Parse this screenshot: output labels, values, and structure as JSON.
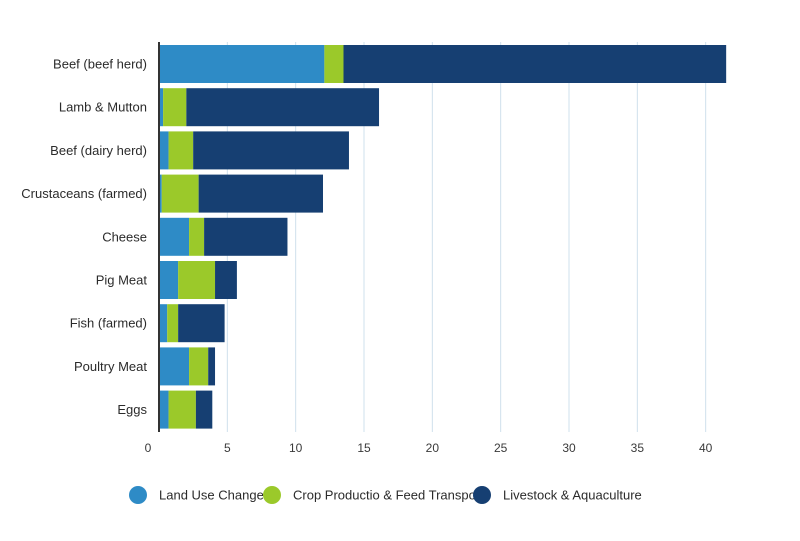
{
  "chart_data": {
    "type": "bar",
    "orientation": "horizontal",
    "stacked": true,
    "categories": [
      "Beef (beef herd)",
      "Lamb & Mutton",
      "Beef (dairy herd)",
      "Crustaceans (farmed)",
      "Cheese",
      "Pig Meat",
      "Fish (farmed)",
      "Poultry Meat",
      "Eggs"
    ],
    "series": [
      {
        "name": "Land Use Change",
        "color": "#2e8bc6",
        "values": [
          12.1,
          0.3,
          0.7,
          0.2,
          2.2,
          1.4,
          0.6,
          2.2,
          0.7
        ]
      },
      {
        "name": "Crop Productio & Feed Transport",
        "color": "#9bc92a",
        "values": [
          1.4,
          1.7,
          1.8,
          2.7,
          1.1,
          2.7,
          0.8,
          1.4,
          2.0
        ]
      },
      {
        "name": "Livestock & Aquaculture",
        "color": "#163f72",
        "values": [
          28.0,
          14.1,
          11.4,
          9.1,
          6.1,
          1.6,
          3.4,
          0.5,
          1.2
        ]
      }
    ],
    "xlim": [
      0,
      42
    ],
    "xticks": [
      0,
      5,
      10,
      15,
      20,
      25,
      30,
      35,
      40
    ],
    "grid": "vertical",
    "legend_position": "bottom"
  }
}
